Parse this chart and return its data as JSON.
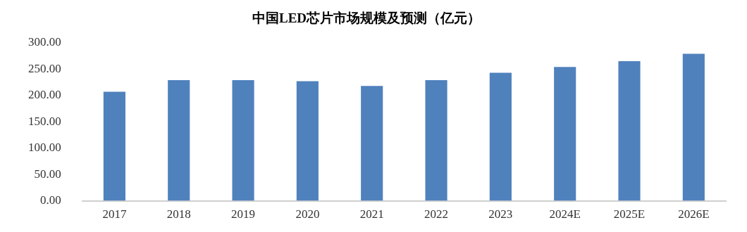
{
  "chart_data": {
    "type": "bar",
    "title": "中国LED芯片市场规模及预测（亿元）",
    "categories": [
      "2017",
      "2018",
      "2019",
      "2020",
      "2021",
      "2022",
      "2023",
      "2024E",
      "2025E",
      "2026E"
    ],
    "values": [
      207,
      229,
      229,
      227,
      218,
      229,
      243,
      254,
      265,
      279
    ],
    "color": "#4f81bd",
    "ylim": [
      0,
      300
    ],
    "yticks": [
      {
        "value": 0,
        "label": "0.00"
      },
      {
        "value": 50,
        "label": "50.00"
      },
      {
        "value": 100,
        "label": "100.00"
      },
      {
        "value": 150,
        "label": "150.00"
      },
      {
        "value": 200,
        "label": "200.00"
      },
      {
        "value": 250,
        "label": "250.00"
      },
      {
        "value": 300,
        "label": "300.00"
      }
    ],
    "grid": false,
    "legend": false
  }
}
